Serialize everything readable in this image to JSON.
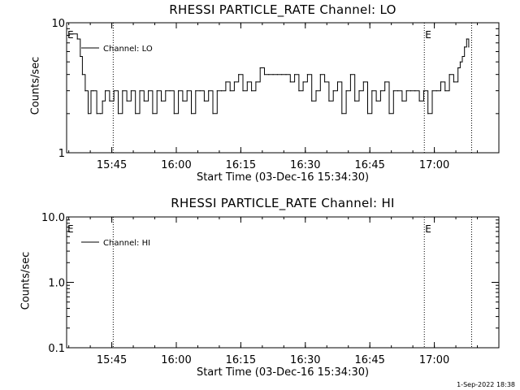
{
  "chart_data": [
    {
      "type": "line",
      "title": "RHESSI PARTICLE_RATE Channel: LO",
      "xlabel": "Start Time (03-Dec-16 15:34:30)",
      "ylabel": "Counts/sec",
      "yscale": "log",
      "ylim": [
        1,
        10
      ],
      "yticks": [
        "1",
        "10"
      ],
      "xlim": [
        "15:34:30",
        "17:15:00"
      ],
      "xticks": [
        "15:45",
        "16:00",
        "16:15",
        "16:30",
        "16:45",
        "17:00"
      ],
      "legend": {
        "entries": [
          "Channel: LO"
        ],
        "placement": "top-left"
      },
      "vlines": [
        {
          "x": "15:45:20",
          "label": ""
        },
        {
          "x": "16:57:40",
          "label": "E"
        },
        {
          "x": "17:08:40",
          "label": ""
        }
      ],
      "corner_label": "E",
      "series": [
        {
          "name": "Channel: LO",
          "x": [
            "15:35:00",
            "15:36:00",
            "15:37:00",
            "15:37:40",
            "15:38:10",
            "15:38:50",
            "15:39:30",
            "15:40:10",
            "15:40:40",
            "15:41:30",
            "15:42:20",
            "15:42:50",
            "15:43:30",
            "15:44:30",
            "15:45:30",
            "15:46:30",
            "15:47:30",
            "15:48:30",
            "15:49:30",
            "15:50:30",
            "15:51:30",
            "15:52:30",
            "15:53:30",
            "15:54:30",
            "15:55:30",
            "15:56:30",
            "15:57:30",
            "15:58:30",
            "15:59:30",
            "16:00:30",
            "16:01:30",
            "16:02:30",
            "16:03:30",
            "16:04:30",
            "16:05:30",
            "16:06:30",
            "16:07:30",
            "16:08:30",
            "16:09:30",
            "16:10:30",
            "16:11:30",
            "16:12:30",
            "16:13:30",
            "16:14:30",
            "16:15:30",
            "16:16:30",
            "16:17:30",
            "16:18:30",
            "16:19:30",
            "16:20:30",
            "16:21:30",
            "16:22:30",
            "16:23:30",
            "16:24:30",
            "16:25:30",
            "16:26:30",
            "16:27:30",
            "16:28:30",
            "16:29:30",
            "16:30:30",
            "16:31:30",
            "16:32:30",
            "16:33:30",
            "16:34:30",
            "16:35:30",
            "16:36:30",
            "16:37:30",
            "16:38:30",
            "16:39:30",
            "16:40:30",
            "16:41:30",
            "16:42:30",
            "16:43:30",
            "16:44:30",
            "16:45:30",
            "16:46:30",
            "16:47:30",
            "16:48:30",
            "16:49:30",
            "16:50:30",
            "16:51:30",
            "16:52:30",
            "16:53:30",
            "16:54:30",
            "16:55:30",
            "16:56:30",
            "16:57:30",
            "16:58:30",
            "16:59:30",
            "17:00:30",
            "17:01:30",
            "17:02:30",
            "17:03:30",
            "17:04:30",
            "17:05:30",
            "17:06:00",
            "17:06:30",
            "17:07:00",
            "17:07:30",
            "17:08:00"
          ],
          "values": [
            8.2,
            8.2,
            7.5,
            5.5,
            4.0,
            3.0,
            2.0,
            3.0,
            3.0,
            2.0,
            2.0,
            2.5,
            3.0,
            2.5,
            3.0,
            2.0,
            3.0,
            2.5,
            3.0,
            2.0,
            3.0,
            2.5,
            3.0,
            2.0,
            3.0,
            2.5,
            3.0,
            3.0,
            2.0,
            3.0,
            2.5,
            3.0,
            2.0,
            3.0,
            3.0,
            2.5,
            3.0,
            2.0,
            3.0,
            3.0,
            3.5,
            3.0,
            3.5,
            4.0,
            3.0,
            3.5,
            3.0,
            3.5,
            4.5,
            4.0,
            4.0,
            4.0,
            4.0,
            4.0,
            4.0,
            3.5,
            4.0,
            3.0,
            3.5,
            4.0,
            2.5,
            3.0,
            4.0,
            3.5,
            2.5,
            3.0,
            3.5,
            2.0,
            3.0,
            4.0,
            2.5,
            3.0,
            3.5,
            2.0,
            3.0,
            2.5,
            3.0,
            3.5,
            2.0,
            3.0,
            3.0,
            2.5,
            3.0,
            3.0,
            3.0,
            2.5,
            3.0,
            2.0,
            3.0,
            3.0,
            3.5,
            3.0,
            4.0,
            3.5,
            4.5,
            5.0,
            5.5,
            6.5,
            7.5,
            6.5
          ]
        }
      ]
    },
    {
      "type": "line",
      "title": "RHESSI PARTICLE_RATE Channel: HI",
      "xlabel": "Start Time (03-Dec-16 15:34:30)",
      "ylabel": "Counts/sec",
      "yscale": "log",
      "ylim": [
        0.1,
        10
      ],
      "yticks": [
        "0.1",
        "1.0",
        "10.0"
      ],
      "xlim": [
        "15:34:30",
        "17:15:00"
      ],
      "xticks": [
        "15:45",
        "16:00",
        "16:15",
        "16:30",
        "16:45",
        "17:00"
      ],
      "legend": {
        "entries": [
          "Channel: HI"
        ],
        "placement": "top-left"
      },
      "vlines": [
        {
          "x": "15:45:20",
          "label": ""
        },
        {
          "x": "16:57:40",
          "label": "E"
        },
        {
          "x": "17:08:40",
          "label": ""
        }
      ],
      "corner_label": "E",
      "series": [
        {
          "name": "Channel: HI",
          "x": [],
          "values": []
        }
      ]
    }
  ],
  "footer": {
    "timestamp": "1-Sep-2022 18:38"
  }
}
